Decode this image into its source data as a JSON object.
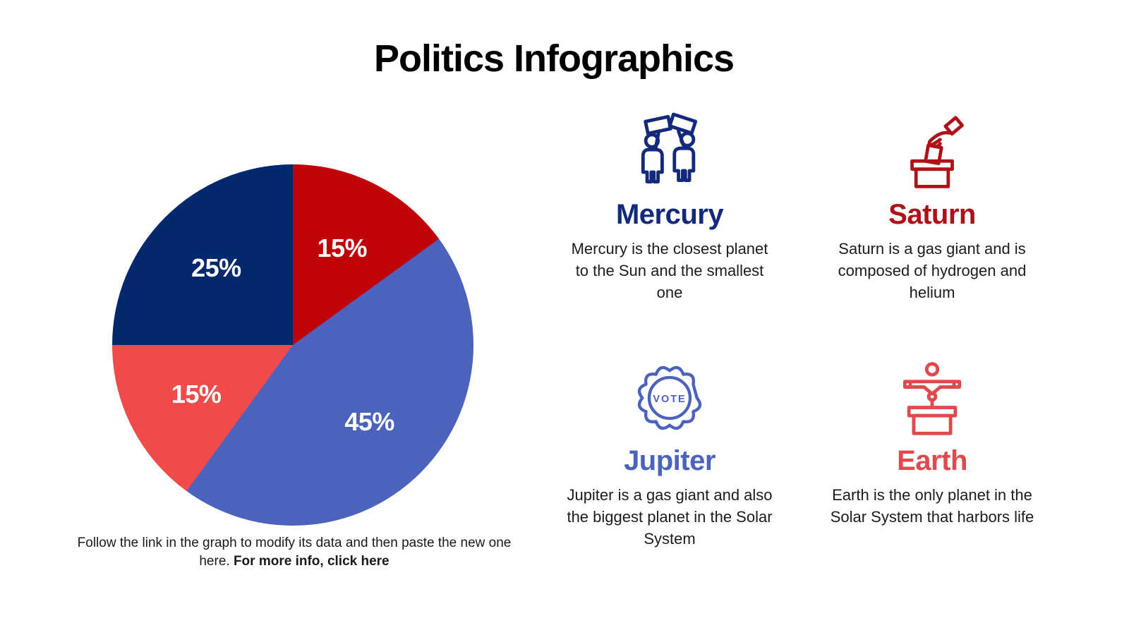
{
  "page": {
    "title": "Politics Infographics"
  },
  "chart_data": {
    "type": "pie",
    "title": "Politics Infographics",
    "slices": [
      {
        "label": "15%",
        "value": 15,
        "color": "#c00309"
      },
      {
        "label": "45%",
        "value": 45,
        "color": "#4c63be"
      },
      {
        "label": "15%",
        "value": 15,
        "color": "#f04a4a"
      },
      {
        "label": "25%",
        "value": 25,
        "color": "#03286e"
      }
    ],
    "start_angle_deg": 0,
    "direction": "clockwise",
    "label_color": "#ffffff",
    "legend": "none"
  },
  "caption": {
    "text": "Follow the link in the graph to modify its data and then paste the new one here. ",
    "link_text": "For more info, click here"
  },
  "cards": [
    {
      "id": "mercury",
      "title": "Mercury",
      "color": "#12297c",
      "icon": "protesters-icon",
      "body": "Mercury is the closest planet to the Sun and the smallest one"
    },
    {
      "id": "saturn",
      "title": "Saturn",
      "color": "#b01118",
      "icon": "ballot-box-icon",
      "body": "Saturn is a gas giant and is composed of hydrogen and helium"
    },
    {
      "id": "jupiter",
      "title": "Jupiter",
      "color": "#4c63be",
      "icon": "vote-badge-icon",
      "badge_text": "VOTE",
      "body": "Jupiter is a gas giant and also the biggest planet in the Solar System"
    },
    {
      "id": "earth",
      "title": "Earth",
      "color": "#e04a4c",
      "icon": "podium-speaker-icon",
      "body": "Earth is the only planet in the Solar System that harbors life"
    }
  ]
}
